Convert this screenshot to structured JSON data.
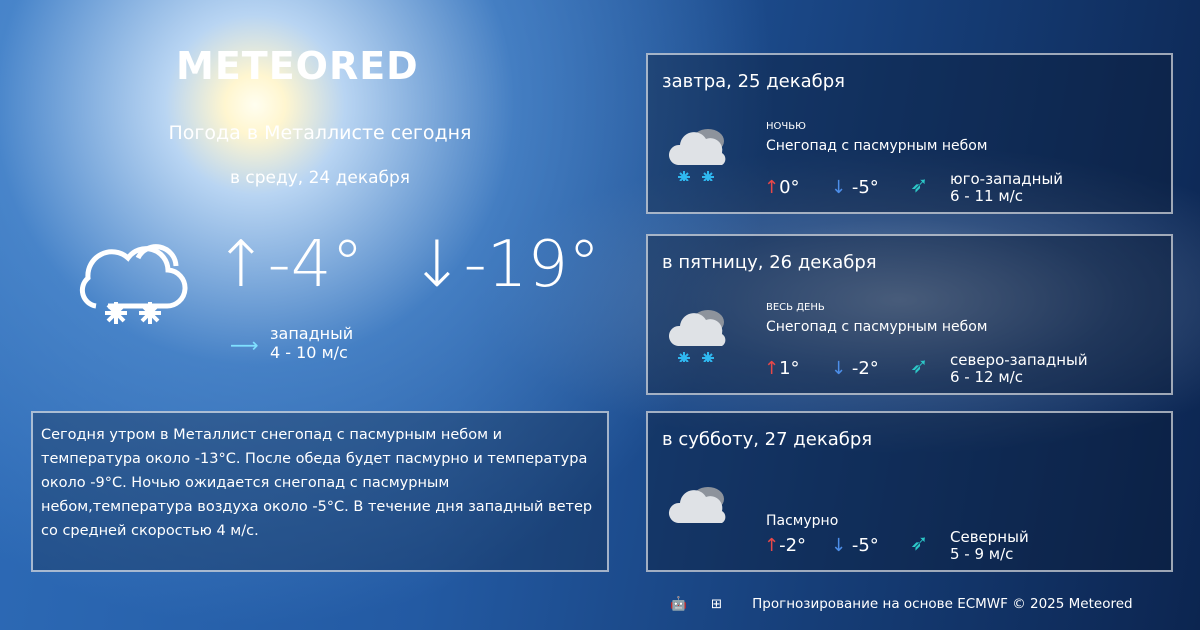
{
  "logo": "METEORED",
  "today": {
    "title": "Погода в Металлисте сегодня",
    "date": "в среду, 24 декабря",
    "icon": "snow-cloud-icon",
    "max": "-4°",
    "min": "-19°",
    "wind_dir": "западный",
    "wind_speed": "4 - 10 м/с",
    "description": "Сегодня утром в Металлист снегопад с пасмурным небом и температура около -13°C. После обеда будет пасмурно и температура около  -9°C. Ночью ожидается снегопад с пасмурным небом,температура воздуха около -5°C. В течение дня западный ветер со средней скоростью 4 м/с."
  },
  "forecast": [
    {
      "day": "завтра, 25 декабря",
      "period": "НОЧЬЮ",
      "condition": "Снегопад с пасмурным небом",
      "icon": "snow-cloud-icon",
      "max": "0°",
      "min": "-5°",
      "wind_dir": "юго-западный",
      "wind_speed": "6 - 11 м/с"
    },
    {
      "day": "в пятницу, 26 декабря",
      "period": "ВЕСЬ ДЕНЬ",
      "condition": "Снегопад с пасмурным небом",
      "icon": "snow-cloud-icon",
      "max": "1°",
      "min": "-2°",
      "wind_dir": "северо-западный",
      "wind_speed": "6 - 12 м/с"
    },
    {
      "day": "в субботу, 27 декабря",
      "period": "",
      "condition": "Пасмурно",
      "icon": "cloud-icon",
      "max": "-2°",
      "min": "-5°",
      "wind_dir": "Северный",
      "wind_speed": "5 - 9 м/с"
    }
  ],
  "footer": {
    "text": "Прогнозирование на основе ECMWF © 2025 Meteored",
    "platforms": [
      "android",
      "apple",
      "windows"
    ]
  },
  "colors": {
    "up": "#e84848",
    "down": "#4d8ee8",
    "wind": "#2cc8c8"
  }
}
